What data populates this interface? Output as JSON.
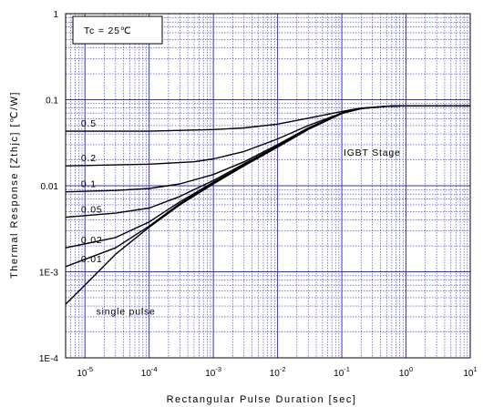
{
  "chart_data": {
    "type": "line",
    "xlabel": "Rectangular Pulse Duration [sec]",
    "ylabel": "Thermal Response [Zthjc]  [℃/W]",
    "xscale": "log",
    "yscale": "log",
    "xlim": [
      5e-06,
      10
    ],
    "ylim": [
      0.0001,
      1
    ],
    "grid": true,
    "x_ticks": [
      {
        "value": 1e-05,
        "base": "10",
        "exp": "-5"
      },
      {
        "value": 0.0001,
        "base": "10",
        "exp": "-4"
      },
      {
        "value": 0.001,
        "base": "10",
        "exp": "-3"
      },
      {
        "value": 0.01,
        "base": "10",
        "exp": "-2"
      },
      {
        "value": 0.1,
        "base": "10",
        "exp": "-1"
      },
      {
        "value": 1,
        "base": "10",
        "exp": "0"
      },
      {
        "value": 10,
        "base": "10",
        "exp": "1"
      }
    ],
    "y_ticks": [
      {
        "value": 1,
        "label": "1"
      },
      {
        "value": 0.1,
        "label": "0.1"
      },
      {
        "value": 0.01,
        "label": "0.01"
      },
      {
        "value": 0.001,
        "label": "1E-3"
      },
      {
        "value": 0.0001,
        "label": "1E-4"
      }
    ],
    "annotations": {
      "condition": "Tc = 25℃",
      "stage": "IGBT Stage"
    },
    "colors": {
      "grid": "#3333cc",
      "curve": "#000000"
    },
    "series": [
      {
        "name": "0.5",
        "x": [
          5e-06,
          0.0001,
          0.001,
          0.003,
          0.01,
          0.03,
          0.1,
          0.2,
          0.5,
          1,
          10
        ],
        "y": [
          0.043,
          0.043,
          0.045,
          0.047,
          0.052,
          0.061,
          0.073,
          0.08,
          0.084,
          0.085,
          0.085
        ]
      },
      {
        "name": "0.2",
        "x": [
          5e-06,
          0.0001,
          0.0005,
          0.001,
          0.003,
          0.01,
          0.03,
          0.1,
          0.2,
          0.5,
          1,
          10
        ],
        "y": [
          0.017,
          0.0178,
          0.019,
          0.0205,
          0.025,
          0.035,
          0.05,
          0.07,
          0.079,
          0.084,
          0.085,
          0.085
        ]
      },
      {
        "name": "0.1",
        "x": [
          5e-06,
          3e-05,
          0.0001,
          0.0003,
          0.001,
          0.003,
          0.01,
          0.03,
          0.1,
          0.2,
          0.5,
          1,
          10
        ],
        "y": [
          0.0085,
          0.0088,
          0.0093,
          0.0105,
          0.0135,
          0.019,
          0.03,
          0.047,
          0.07,
          0.079,
          0.084,
          0.085,
          0.085
        ]
      },
      {
        "name": "0.05",
        "x": [
          5e-06,
          3e-05,
          0.0001,
          0.0003,
          0.001,
          0.003,
          0.01,
          0.03,
          0.1,
          0.2,
          0.5,
          1,
          10
        ],
        "y": [
          0.0043,
          0.0048,
          0.0055,
          0.0075,
          0.0115,
          0.018,
          0.029,
          0.046,
          0.07,
          0.079,
          0.084,
          0.085,
          0.085
        ]
      },
      {
        "name": "0.02",
        "x": [
          5e-06,
          3e-05,
          0.0001,
          0.0003,
          0.001,
          0.003,
          0.01,
          0.03,
          0.1,
          0.2,
          0.5,
          1,
          10
        ],
        "y": [
          0.0019,
          0.0025,
          0.0038,
          0.0065,
          0.011,
          0.0175,
          0.029,
          0.046,
          0.07,
          0.079,
          0.084,
          0.085,
          0.085
        ]
      },
      {
        "name": "0.01",
        "x": [
          5e-06,
          3e-05,
          0.0001,
          0.0003,
          0.001,
          0.003,
          0.01,
          0.03,
          0.1,
          0.2,
          0.5,
          1,
          10
        ],
        "y": [
          0.00115,
          0.0019,
          0.0034,
          0.0062,
          0.0108,
          0.0172,
          0.0285,
          0.046,
          0.07,
          0.079,
          0.084,
          0.085,
          0.085
        ]
      },
      {
        "name": "single pulse",
        "x": [
          5e-06,
          1e-05,
          3e-05,
          0.0001,
          0.0003,
          0.001,
          0.003,
          0.01,
          0.03,
          0.1,
          0.2,
          0.5,
          1,
          10
        ],
        "y": [
          0.00042,
          0.0007,
          0.0016,
          0.0033,
          0.006,
          0.0105,
          0.017,
          0.028,
          0.045,
          0.069,
          0.079,
          0.084,
          0.085,
          0.085
        ]
      }
    ]
  }
}
